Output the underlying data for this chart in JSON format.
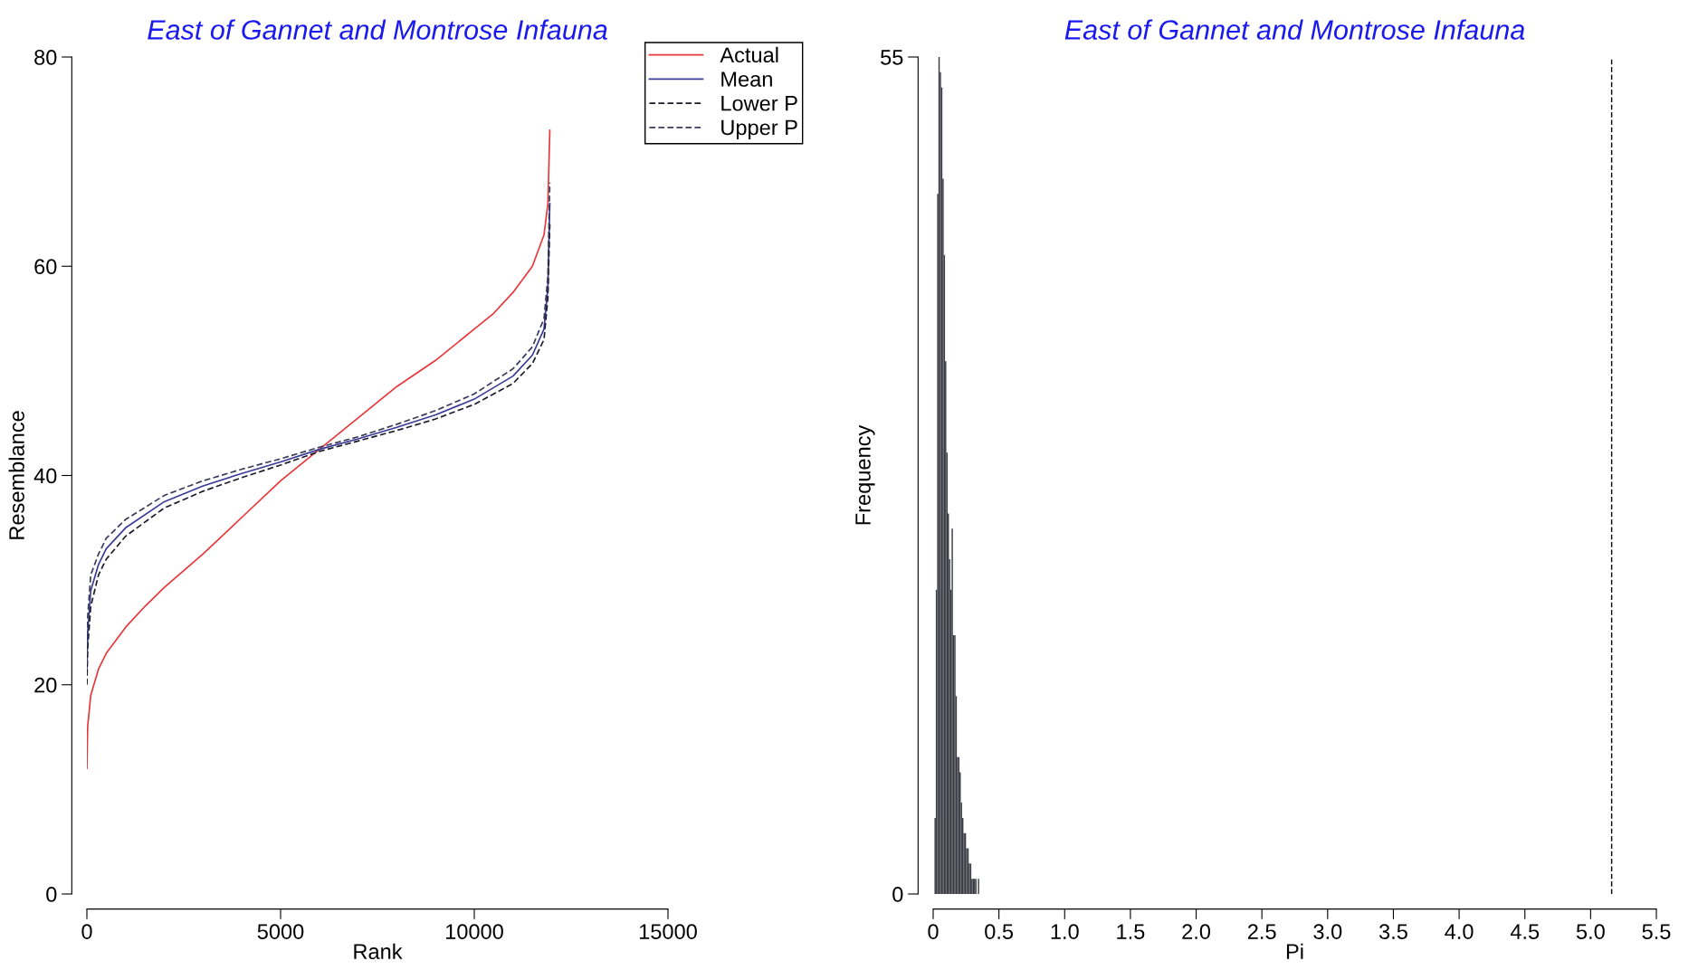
{
  "chart_data": [
    {
      "type": "line",
      "title": "East of Gannet and Montrose Infauna",
      "xlabel": "Rank",
      "ylabel": "Resemblance",
      "xlim": [
        0,
        15000
      ],
      "xticks": [
        0,
        5000,
        10000,
        15000
      ],
      "ylim": [
        0,
        80
      ],
      "yticks": [
        0,
        20,
        40,
        60,
        80
      ],
      "grid": false,
      "legend": "top right",
      "series": [
        {
          "name": "Actual",
          "color": "#e8363a",
          "line_style": "solid",
          "x": [
            0,
            20,
            100,
            300,
            500,
            1000,
            1500,
            2000,
            3000,
            4000,
            5000,
            6000,
            7000,
            8000,
            9000,
            10000,
            10500,
            11000,
            11500,
            11800,
            11900,
            11950
          ],
          "values": [
            12,
            16,
            19,
            21.5,
            23,
            25.5,
            27.5,
            29.3,
            32.5,
            36,
            39.5,
            42.5,
            45.5,
            48.5,
            51,
            54,
            55.5,
            57.5,
            60,
            63,
            66,
            73
          ]
        },
        {
          "name": "Mean",
          "color": "#3a3a9a",
          "line_style": "solid",
          "x": [
            0,
            20,
            100,
            300,
            500,
            1000,
            2000,
            3000,
            4000,
            5000,
            6000,
            7000,
            8000,
            9000,
            10000,
            11000,
            11500,
            11800,
            11900,
            11950
          ],
          "values": [
            21,
            25,
            29,
            31.5,
            33,
            35,
            37.5,
            39,
            40.2,
            41.3,
            42.5,
            43.5,
            44.6,
            45.8,
            47.3,
            49.5,
            51.5,
            54,
            58,
            66
          ]
        },
        {
          "name": "Lower P",
          "color": "#1a1a2a",
          "line_style": "dashed",
          "x": [
            0,
            20,
            100,
            300,
            500,
            1000,
            2000,
            3000,
            4000,
            5000,
            6000,
            7000,
            8000,
            9000,
            10000,
            11000,
            11500,
            11800,
            11900,
            11950
          ],
          "values": [
            20,
            23.5,
            27.5,
            30.5,
            32,
            34.2,
            36.9,
            38.5,
            39.8,
            41,
            42.3,
            43.3,
            44.3,
            45.4,
            46.8,
            48.8,
            50.7,
            53,
            57,
            64
          ]
        },
        {
          "name": "Upper P",
          "color": "#3a3a5a",
          "line_style": "dashed",
          "x": [
            0,
            20,
            100,
            300,
            500,
            1000,
            2000,
            3000,
            4000,
            5000,
            6000,
            7000,
            8000,
            9000,
            10000,
            11000,
            11500,
            11800,
            11900,
            11950
          ],
          "values": [
            22,
            26.5,
            30.5,
            32.5,
            34,
            35.8,
            38.1,
            39.5,
            40.6,
            41.6,
            42.7,
            43.7,
            44.9,
            46.2,
            47.8,
            50.2,
            52.3,
            55,
            59,
            68
          ]
        }
      ]
    },
    {
      "type": "histogram",
      "title": "East of Gannet and Montrose Infauna",
      "xlabel": "Pi",
      "ylabel": "Frequency",
      "color": "#3c3c46",
      "xlim": [
        0,
        5.5
      ],
      "xticks": [
        0,
        {
          "value": 0.5,
          "label": "0.5"
        },
        {
          "value": 1,
          "label": "1.0"
        },
        {
          "value": 1.5,
          "label": "1.5"
        },
        {
          "value": 2,
          "label": "2.0"
        },
        {
          "value": 2.5,
          "label": "2.5"
        },
        {
          "value": 3,
          "label": "3.0"
        },
        {
          "value": 3.5,
          "label": "3.5"
        },
        {
          "value": 4,
          "label": "4.0"
        },
        {
          "value": 4.5,
          "label": "4.5"
        },
        {
          "value": 5,
          "label": "5.0"
        },
        {
          "value": 5.5,
          "label": "5.5"
        }
      ],
      "ylim": [
        0,
        55
      ],
      "yticks": [
        0,
        55
      ],
      "grid": false,
      "bins": [
        0.01,
        0.02,
        0.03,
        0.04,
        0.05,
        0.06,
        0.07,
        0.08,
        0.09,
        0.1,
        0.11,
        0.12,
        0.13,
        0.14,
        0.15,
        0.16,
        0.17,
        0.18,
        0.19,
        0.2,
        0.21,
        0.22,
        0.23,
        0.24,
        0.25,
        0.26,
        0.27,
        0.28,
        0.29,
        0.3,
        0.31,
        0.32,
        0.33,
        0.34,
        0.35
      ],
      "values": [
        5,
        20,
        46,
        55,
        54,
        53,
        47,
        42,
        35,
        29,
        25,
        22,
        20,
        24,
        17,
        17,
        13,
        9,
        9,
        8,
        6,
        5,
        4,
        4,
        3,
        3,
        2,
        2,
        1,
        1,
        1,
        1,
        0,
        1
      ],
      "ref_lines": [
        {
          "axis": "x",
          "value": 5.16,
          "label": null,
          "color": "#000000",
          "line_style": "dashed"
        }
      ]
    }
  ]
}
